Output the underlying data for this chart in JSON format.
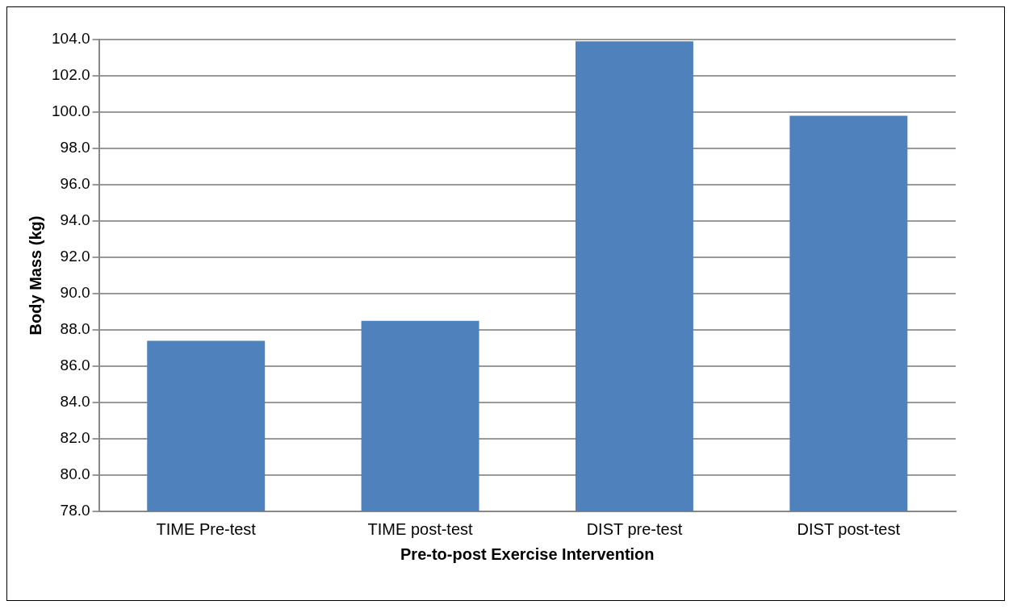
{
  "chart_data": {
    "type": "bar",
    "xlabel": "Pre-to-post Exercise Intervention",
    "ylabel": "Body Mass (kg)",
    "categories": [
      "TIME Pre-test",
      "TIME post-test",
      "DIST pre-test",
      "DIST post-test"
    ],
    "values": [
      87.4,
      88.5,
      103.9,
      99.8
    ],
    "color": "#4f81bd",
    "ylim": [
      78,
      104
    ],
    "yticks": [
      {
        "value": 78,
        "label": "78.0"
      },
      {
        "value": 80,
        "label": "80.0"
      },
      {
        "value": 82,
        "label": "82.0"
      },
      {
        "value": 84,
        "label": "84.0"
      },
      {
        "value": 86,
        "label": "86.0"
      },
      {
        "value": 88,
        "label": "88.0"
      },
      {
        "value": 90,
        "label": "90.0"
      },
      {
        "value": 92,
        "label": "92.0"
      },
      {
        "value": 94,
        "label": "94.0"
      },
      {
        "value": 96,
        "label": "96.0"
      },
      {
        "value": 98,
        "label": "98.0"
      },
      {
        "value": 100,
        "label": "100.0"
      },
      {
        "value": 102,
        "label": "102.0"
      },
      {
        "value": 104,
        "label": "104.0"
      }
    ],
    "grid": "y",
    "legend": false
  }
}
